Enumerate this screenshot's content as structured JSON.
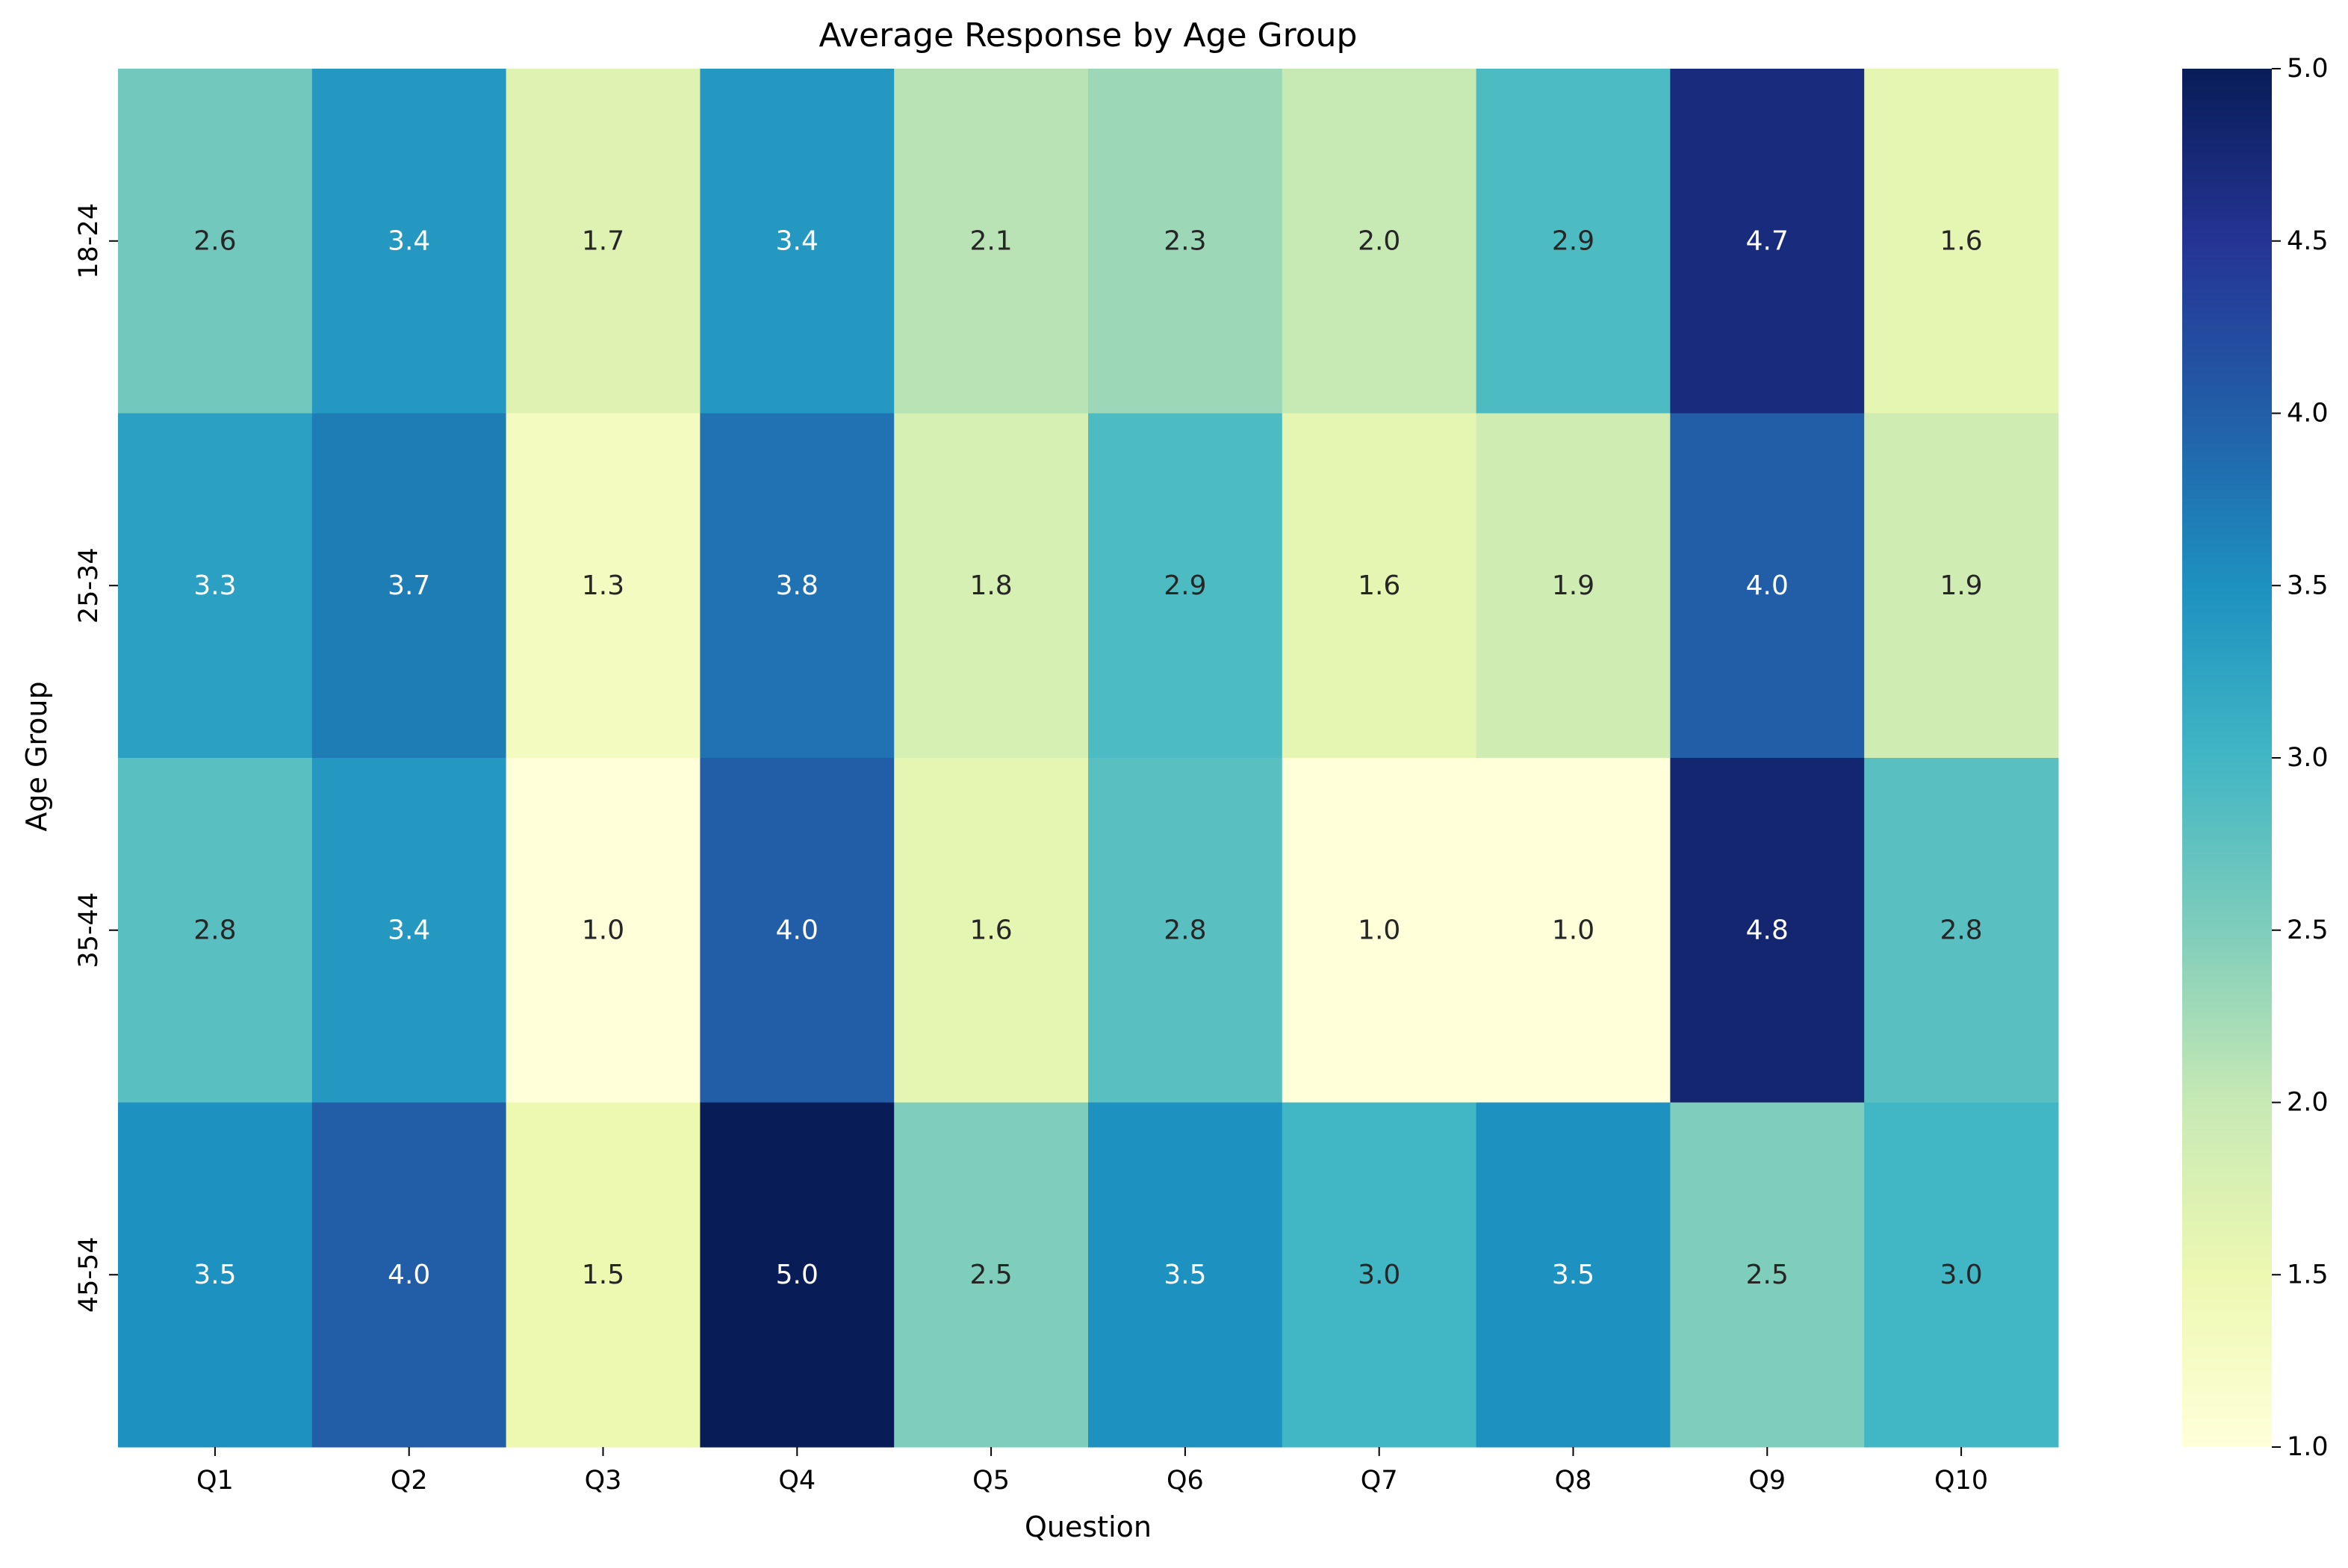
{
  "chart_data": {
    "type": "heatmap",
    "title": "Average Response by Age Group",
    "xlabel": "Question",
    "ylabel": "Age Group",
    "x_categories": [
      "Q1",
      "Q2",
      "Q3",
      "Q4",
      "Q5",
      "Q6",
      "Q7",
      "Q8",
      "Q9",
      "Q10"
    ],
    "y_categories": [
      "18-24",
      "25-34",
      "35-44",
      "45-54"
    ],
    "values": [
      [
        2.6,
        3.4,
        1.7,
        3.4,
        2.1,
        2.3,
        2.0,
        2.9,
        4.7,
        1.6
      ],
      [
        3.3,
        3.7,
        1.3,
        3.8,
        1.8,
        2.9,
        1.6,
        1.9,
        4.0,
        1.9
      ],
      [
        2.8,
        3.4,
        1.0,
        4.0,
        1.6,
        2.8,
        1.0,
        1.0,
        4.8,
        2.8
      ],
      [
        3.5,
        4.0,
        1.5,
        5.0,
        2.5,
        3.5,
        3.0,
        3.5,
        2.5,
        3.0
      ]
    ],
    "value_labels": [
      [
        "2.6",
        "3.4",
        "1.7",
        "3.4",
        "2.1",
        "2.3",
        "2.0",
        "2.9",
        "4.7",
        "1.6"
      ],
      [
        "3.3",
        "3.7",
        "1.3",
        "3.8",
        "1.8",
        "2.9",
        "1.6",
        "1.9",
        "4.0",
        "1.9"
      ],
      [
        "2.8",
        "3.4",
        "1.0",
        "4.0",
        "1.6",
        "2.8",
        "1.0",
        "1.0",
        "4.8",
        "2.8"
      ],
      [
        "3.5",
        "4.0",
        "1.5",
        "5.0",
        "2.5",
        "3.5",
        "3.0",
        "3.5",
        "2.5",
        "3.0"
      ]
    ],
    "colorbar": {
      "range": [
        1.0,
        5.0
      ],
      "ticks": [
        1.0,
        1.5,
        2.0,
        2.5,
        3.0,
        3.5,
        4.0,
        4.5,
        5.0
      ],
      "tick_labels": [
        "1.0",
        "1.5",
        "2.0",
        "2.5",
        "3.0",
        "3.5",
        "4.0",
        "4.5",
        "5.0"
      ],
      "colormap": "YlGnBu",
      "colors": [
        "#ffffd9",
        "#edf8b1",
        "#c7e9b4",
        "#7fcdbb",
        "#41b6c4",
        "#1d91c0",
        "#225ea8",
        "#253494",
        "#081d58"
      ]
    }
  }
}
